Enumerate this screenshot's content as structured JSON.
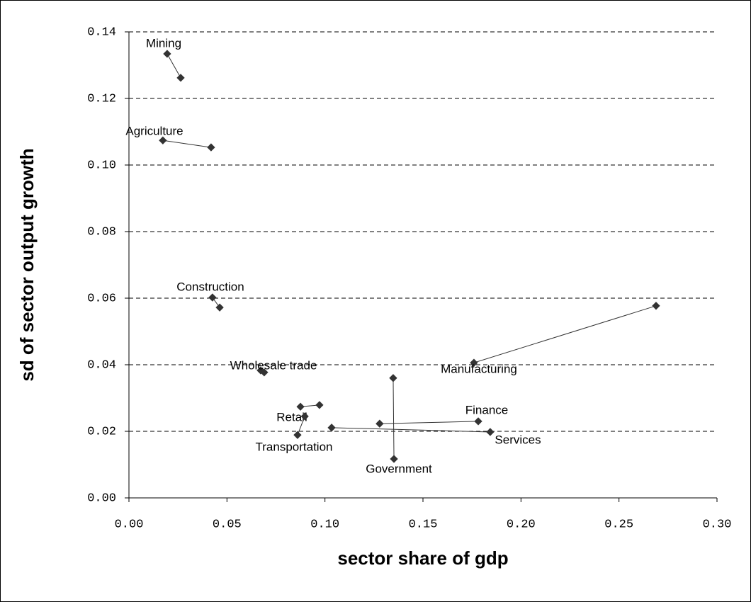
{
  "chart_data": {
    "type": "scatter",
    "xlabel": "sector share of gdp",
    "ylabel": "sd of sector output growth",
    "series": [
      {
        "name": "Mining",
        "color": "#333333",
        "x": [
          0.0195,
          0.0264
        ],
        "values": [
          0.1334,
          0.1262
        ]
      },
      {
        "name": "Agriculture",
        "color": "#333333",
        "x": [
          0.0173,
          0.0419
        ],
        "values": [
          0.1074,
          0.1053
        ]
      },
      {
        "name": "Construction",
        "color": "#333333",
        "x": [
          0.0426,
          0.0463
        ],
        "values": [
          0.0602,
          0.0572
        ]
      },
      {
        "name": "Wholesale trade",
        "color": "#333333",
        "x": [
          0.0672,
          0.069
        ],
        "values": [
          0.0383,
          0.0377
        ]
      },
      {
        "name": "Retail",
        "color": "#333333",
        "x": [
          0.0875,
          0.0972
        ],
        "values": [
          0.0274,
          0.0279
        ]
      },
      {
        "name": "Transportation",
        "color": "#333333",
        "x": [
          0.086,
          0.0897
        ],
        "values": [
          0.0189,
          0.0245
        ]
      },
      {
        "name": "Government",
        "color": "#333333",
        "x": [
          0.1348,
          0.1352
        ],
        "values": [
          0.036,
          0.0117
        ]
      },
      {
        "name": "Manufacturing",
        "color": "#333333",
        "x": [
          0.176,
          0.2689
        ],
        "values": [
          0.0406,
          0.0577
        ]
      },
      {
        "name": "Finance",
        "color": "#333333",
        "x": [
          0.1279,
          0.1782
        ],
        "values": [
          0.0223,
          0.023
        ]
      },
      {
        "name": "Services",
        "color": "#333333",
        "x": [
          0.1034,
          0.1843
        ],
        "values": [
          0.0211,
          0.0198
        ]
      }
    ],
    "xlim": [
      0,
      0.3
    ],
    "xticks": [
      {
        "value": 0,
        "label": "0.00"
      },
      {
        "value": 0.05,
        "label": "0.05"
      },
      {
        "value": 0.1,
        "label": "0.10"
      },
      {
        "value": 0.15,
        "label": "0.15"
      },
      {
        "value": 0.2,
        "label": "0.20"
      },
      {
        "value": 0.25,
        "label": "0.25"
      },
      {
        "value": 0.3,
        "label": "0.30"
      }
    ],
    "ylim": [
      0,
      0.14
    ],
    "yticks": [
      {
        "value": 0,
        "label": "0.00"
      },
      {
        "value": 0.02,
        "label": "0.02"
      },
      {
        "value": 0.04,
        "label": "0.04"
      },
      {
        "value": 0.06,
        "label": "0.06"
      },
      {
        "value": 0.08,
        "label": "0.08"
      },
      {
        "value": 0.1,
        "label": "0.10"
      },
      {
        "value": 0.12,
        "label": "0.12"
      },
      {
        "value": 0.14,
        "label": "0.14"
      }
    ],
    "grid": true
  }
}
